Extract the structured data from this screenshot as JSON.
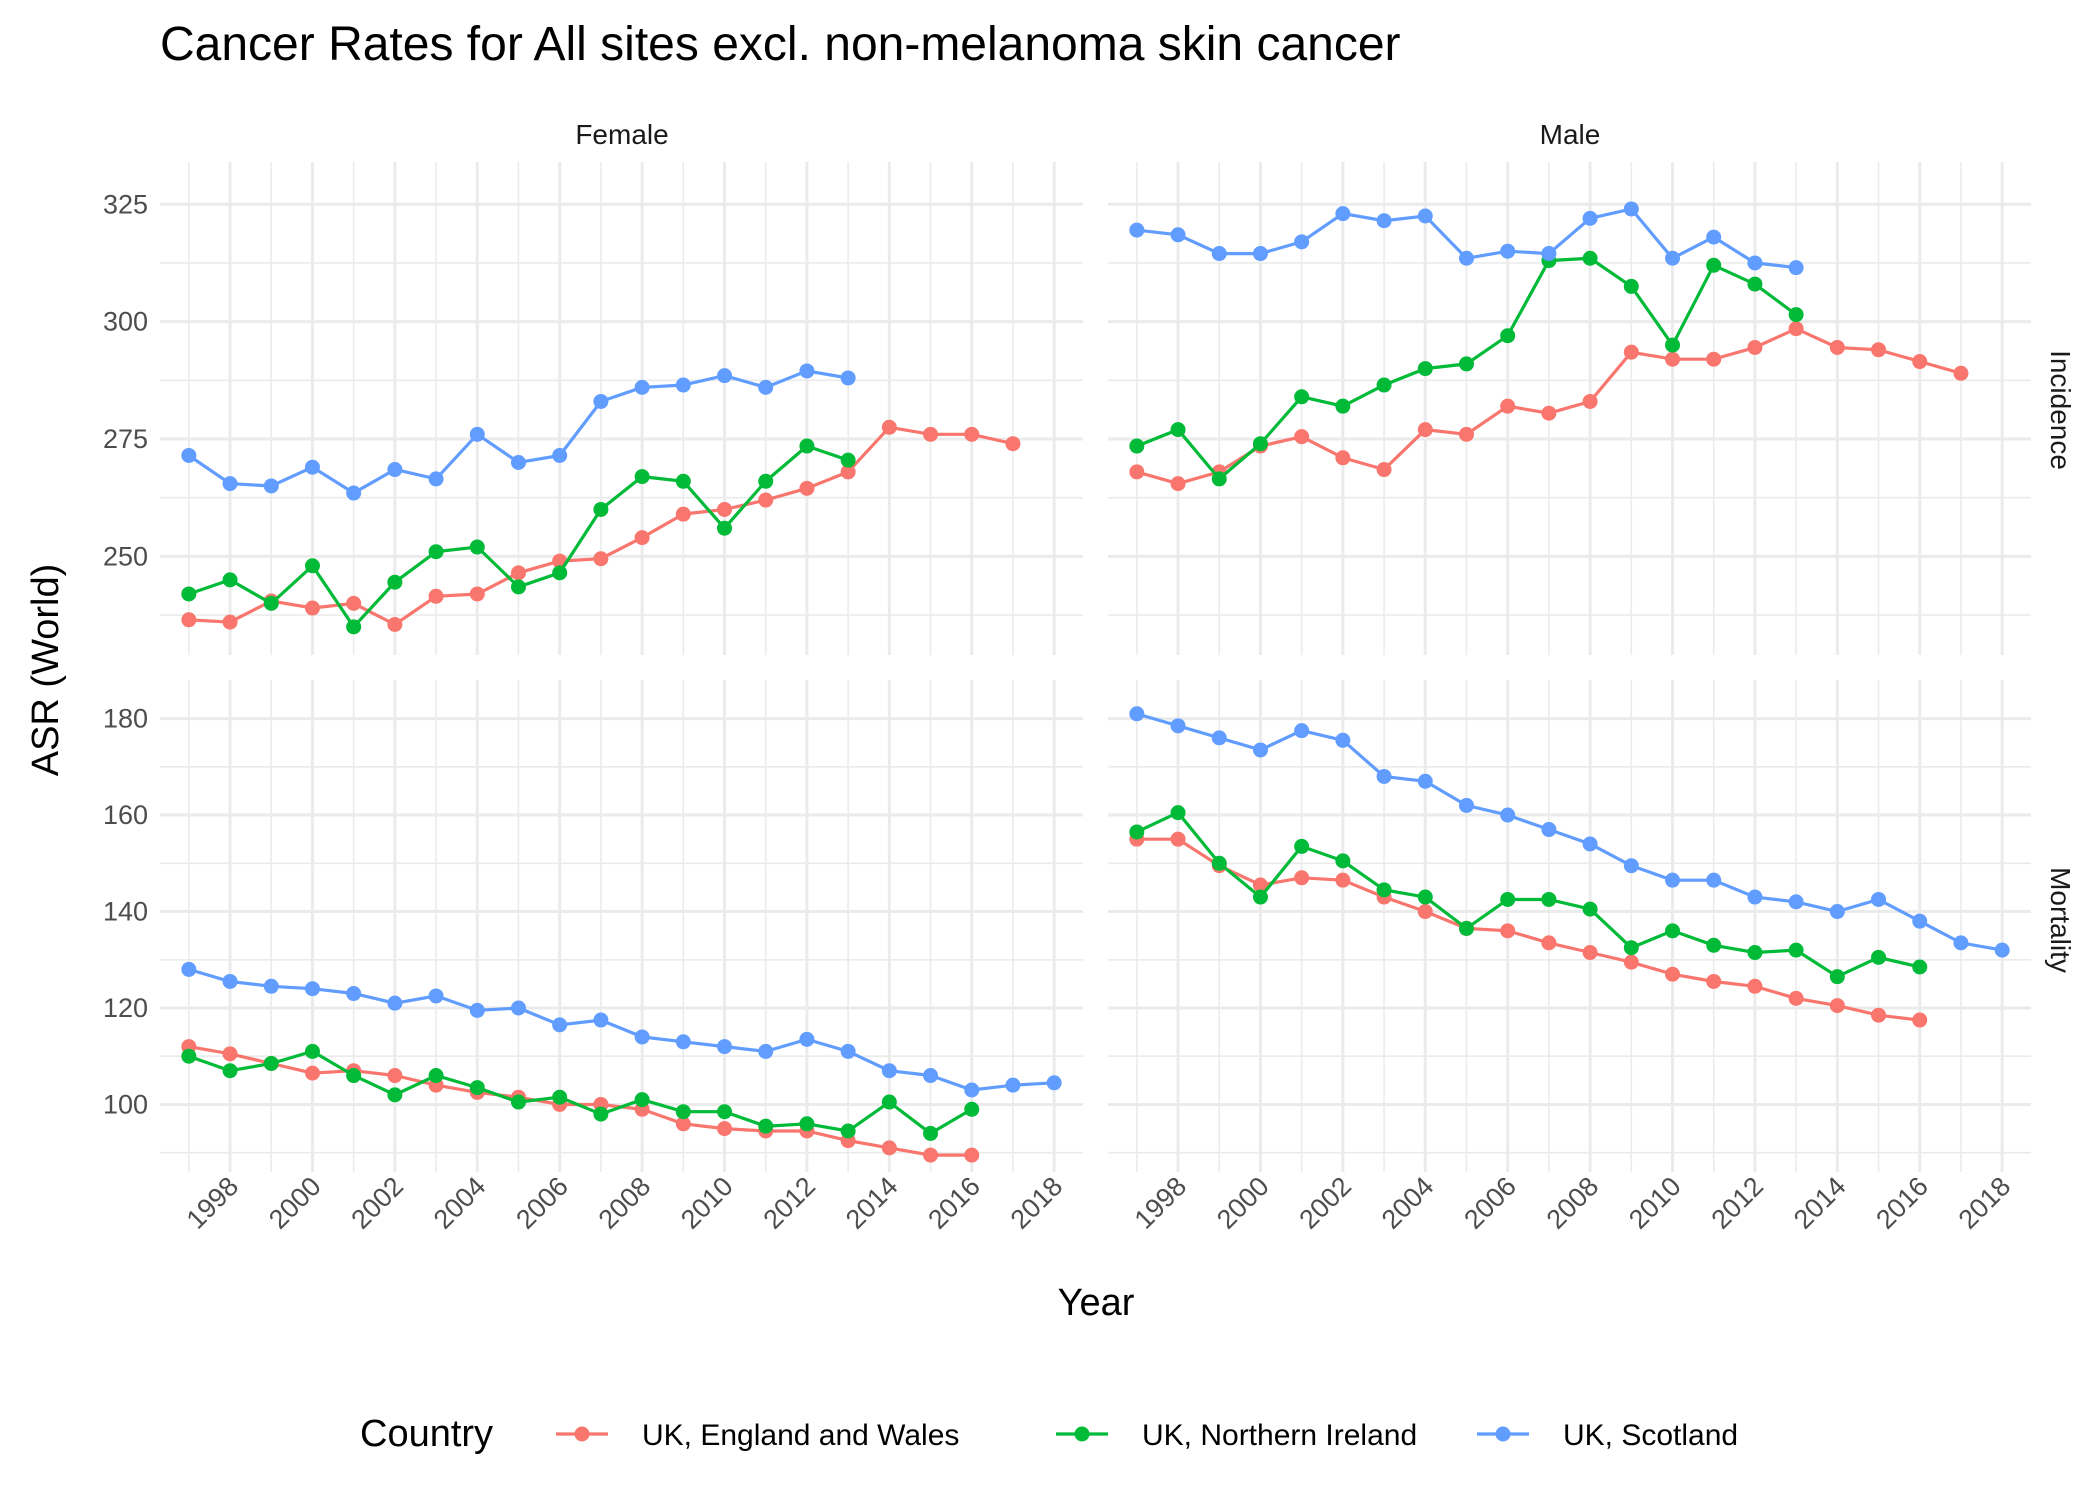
{
  "chart_data": {
    "type": "line",
    "title": "Cancer Rates for All sites excl. non-melanoma skin cancer",
    "xlabel": "Year",
    "ylabel": "ASR (World)",
    "columns": [
      "Female",
      "Male"
    ],
    "rows": [
      "Incidence",
      "Mortality"
    ],
    "x_ticks": [
      "1998",
      "2000",
      "2002",
      "2004",
      "2006",
      "2008",
      "2010",
      "2012",
      "2014",
      "2016",
      "2018"
    ],
    "xlim": [
      1996.3,
      2018.7
    ],
    "y_axes": {
      "Incidence": {
        "ticks": [
          250,
          275,
          300,
          325
        ],
        "minor": [
          237.5,
          262.5,
          287.5,
          312.5
        ],
        "ylim": [
          229,
          334
        ]
      },
      "Mortality": {
        "ticks": [
          100,
          120,
          140,
          160,
          180
        ],
        "minor": [
          90,
          110,
          130,
          150,
          170
        ],
        "ylim": [
          86,
          188
        ]
      }
    },
    "legend": {
      "title": "Country",
      "position": "bottom"
    },
    "series": [
      {
        "name": "UK, England and Wales",
        "color": "#F8766D"
      },
      {
        "name": "UK, Northern Ireland",
        "color": "#00BA38"
      },
      {
        "name": "UK, Scotland",
        "color": "#619CFF"
      }
    ],
    "panels": [
      {
        "column": "Female",
        "row": "Incidence",
        "lines": [
          {
            "series": "UK, England and Wales",
            "x": [
              1997,
              1998,
              1999,
              2000,
              2001,
              2002,
              2003,
              2004,
              2005,
              2006,
              2007,
              2008,
              2009,
              2010,
              2011,
              2012,
              2013,
              2014,
              2015,
              2016,
              2017
            ],
            "y": [
              236.5,
              236,
              240.5,
              239,
              240,
              235.5,
              241.5,
              242,
              246.5,
              249,
              249.5,
              254,
              259,
              260,
              262,
              264.5,
              268,
              277.5,
              276,
              276,
              274
            ]
          },
          {
            "series": "UK, Northern Ireland",
            "x": [
              1997,
              1998,
              1999,
              2000,
              2001,
              2002,
              2003,
              2004,
              2005,
              2006,
              2007,
              2008,
              2009,
              2010,
              2011,
              2012,
              2013
            ],
            "y": [
              242,
              245,
              240,
              248,
              235,
              244.5,
              251,
              252,
              243.5,
              246.5,
              260,
              267,
              266,
              256,
              266,
              273.5,
              270.5
            ]
          },
          {
            "series": "UK, Scotland",
            "x": [
              1997,
              1998,
              1999,
              2000,
              2001,
              2002,
              2003,
              2004,
              2005,
              2006,
              2007,
              2008,
              2009,
              2010,
              2011,
              2012,
              2013
            ],
            "y": [
              271.5,
              265.5,
              265,
              269,
              263.5,
              268.5,
              266.5,
              276,
              270,
              271.5,
              283,
              286,
              286.5,
              288.5,
              286,
              289.5,
              288
            ]
          }
        ]
      },
      {
        "column": "Male",
        "row": "Incidence",
        "lines": [
          {
            "series": "UK, England and Wales",
            "x": [
              1997,
              1998,
              1999,
              2000,
              2001,
              2002,
              2003,
              2004,
              2005,
              2006,
              2007,
              2008,
              2009,
              2010,
              2011,
              2012,
              2013,
              2014,
              2015,
              2016,
              2017
            ],
            "y": [
              268,
              265.5,
              268,
              273.5,
              275.5,
              271,
              268.5,
              277,
              276,
              282,
              280.5,
              283,
              293.5,
              292,
              292,
              294.5,
              298.5,
              294.5,
              294,
              291.5,
              289
            ]
          },
          {
            "series": "UK, Northern Ireland",
            "x": [
              1997,
              1998,
              1999,
              2000,
              2001,
              2002,
              2003,
              2004,
              2005,
              2006,
              2007,
              2008,
              2009,
              2010,
              2011,
              2012,
              2013
            ],
            "y": [
              273.5,
              277,
              266.5,
              274,
              284,
              282,
              286.5,
              290,
              291,
              297,
              313,
              313.5,
              307.5,
              295,
              312,
              308,
              301.5
            ]
          },
          {
            "series": "UK, Scotland",
            "x": [
              1997,
              1998,
              1999,
              2000,
              2001,
              2002,
              2003,
              2004,
              2005,
              2006,
              2007,
              2008,
              2009,
              2010,
              2011,
              2012,
              2013
            ],
            "y": [
              319.5,
              318.5,
              314.5,
              314.5,
              317,
              323,
              321.5,
              322.5,
              313.5,
              315,
              314.5,
              322,
              324,
              313.5,
              318,
              312.5,
              311.5
            ]
          }
        ]
      },
      {
        "column": "Female",
        "row": "Mortality",
        "lines": [
          {
            "series": "UK, England and Wales",
            "x": [
              1997,
              1998,
              1999,
              2000,
              2001,
              2002,
              2003,
              2004,
              2005,
              2006,
              2007,
              2008,
              2009,
              2010,
              2011,
              2012,
              2013,
              2014,
              2015,
              2016
            ],
            "y": [
              112,
              110.5,
              108.5,
              106.5,
              107,
              106,
              104,
              102.5,
              101.5,
              100,
              100,
              99,
              96,
              95,
              94.5,
              94.5,
              92.5,
              91,
              89.5,
              89.5
            ]
          },
          {
            "series": "UK, Northern Ireland",
            "x": [
              1997,
              1998,
              1999,
              2000,
              2001,
              2002,
              2003,
              2004,
              2005,
              2006,
              2007,
              2008,
              2009,
              2010,
              2011,
              2012,
              2013,
              2014,
              2015,
              2016
            ],
            "y": [
              110,
              107,
              108.5,
              111,
              106,
              102,
              106,
              103.5,
              100.5,
              101.5,
              98,
              101,
              98.5,
              98.5,
              95.5,
              96,
              94.5,
              100.5,
              94,
              99
            ]
          },
          {
            "series": "UK, Scotland",
            "x": [
              1997,
              1998,
              1999,
              2000,
              2001,
              2002,
              2003,
              2004,
              2005,
              2006,
              2007,
              2008,
              2009,
              2010,
              2011,
              2012,
              2013,
              2014,
              2015,
              2016,
              2017,
              2018
            ],
            "y": [
              128,
              125.5,
              124.5,
              124,
              123,
              121,
              122.5,
              119.5,
              120,
              116.5,
              117.5,
              114,
              113,
              112,
              111,
              113.5,
              111,
              107,
              106,
              103,
              104,
              104.5
            ]
          }
        ]
      },
      {
        "column": "Male",
        "row": "Mortality",
        "lines": [
          {
            "series": "UK, England and Wales",
            "x": [
              1997,
              1998,
              1999,
              2000,
              2001,
              2002,
              2003,
              2004,
              2005,
              2006,
              2007,
              2008,
              2009,
              2010,
              2011,
              2012,
              2013,
              2014,
              2015,
              2016
            ],
            "y": [
              155,
              155,
              149.5,
              145.5,
              147,
              146.5,
              143,
              140,
              136.5,
              136,
              133.5,
              131.5,
              129.5,
              127,
              125.5,
              124.5,
              122,
              120.5,
              118.5,
              117.5
            ]
          },
          {
            "series": "UK, Northern Ireland",
            "x": [
              1997,
              1998,
              1999,
              2000,
              2001,
              2002,
              2003,
              2004,
              2005,
              2006,
              2007,
              2008,
              2009,
              2010,
              2011,
              2012,
              2013,
              2014,
              2015,
              2016
            ],
            "y": [
              156.5,
              160.5,
              150,
              143,
              153.5,
              150.5,
              144.5,
              143,
              136.5,
              142.5,
              142.5,
              140.5,
              132.5,
              136,
              133,
              131.5,
              132,
              126.5,
              130.5,
              128.5
            ]
          },
          {
            "series": "UK, Scotland",
            "x": [
              1997,
              1998,
              1999,
              2000,
              2001,
              2002,
              2003,
              2004,
              2005,
              2006,
              2007,
              2008,
              2009,
              2010,
              2011,
              2012,
              2013,
              2014,
              2015,
              2016,
              2017,
              2018
            ],
            "y": [
              181,
              178.5,
              176,
              173.5,
              177.5,
              175.5,
              168,
              167,
              162,
              160,
              157,
              154,
              149.5,
              146.5,
              146.5,
              143,
              142,
              140,
              142.5,
              138,
              133.5,
              132
            ]
          }
        ]
      }
    ]
  }
}
